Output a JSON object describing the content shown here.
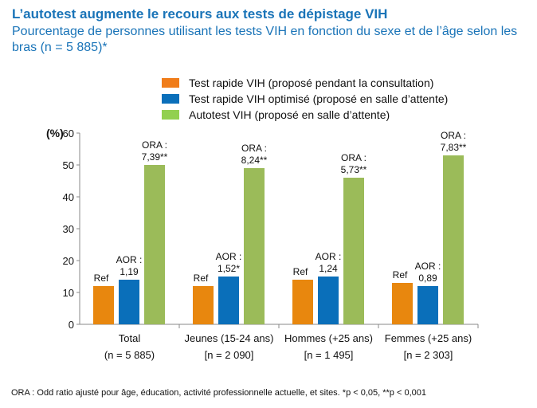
{
  "chart_data": {
    "type": "bar",
    "title": "L’autotest augmente le recours aux tests de dépistage VIH",
    "subtitle": "Pourcentage de personnes utilisant les tests VIH en fonction du sexe et de l’âge selon les bras (n = 5 885)*",
    "ylabel": "(%)",
    "ylim": [
      0,
      60
    ],
    "yticks": [
      "0",
      "10",
      "20",
      "30",
      "40",
      "50",
      "60"
    ],
    "categories": [
      {
        "line1": "Total",
        "line2": "(n = 5 885)"
      },
      {
        "line1": "Jeunes (15-24 ans)",
        "line2": "[n = 2 090]"
      },
      {
        "line1": "Hommes (+25 ans)",
        "line2": "[n = 1 495]"
      },
      {
        "line1": "Femmes (+25 ans)",
        "line2": "[n = 2 303]"
      }
    ],
    "series": [
      {
        "name": "Test rapide VIH (proposé pendant la consultation)",
        "color": "#e8870e",
        "values": [
          12,
          12,
          14,
          13
        ],
        "labels": [
          [
            "Ref"
          ],
          [
            "Ref"
          ],
          [
            "Ref"
          ],
          [
            "Ref"
          ]
        ]
      },
      {
        "name": "Test  rapide VIH optimisé (proposé en salle d’attente)",
        "color": "#0a6fba",
        "values": [
          14,
          15,
          15,
          12
        ],
        "labels": [
          [
            "AOR :",
            "1,19"
          ],
          [
            "AOR :",
            "1,52*"
          ],
          [
            "AOR :",
            "1,24"
          ],
          [
            "AOR :",
            "0,89"
          ]
        ]
      },
      {
        "name": "Autotest VIH (proposé en salle d’attente)",
        "color": "#9bbb59",
        "values": [
          50,
          49,
          46,
          53
        ],
        "labels": [
          [
            "ORA :",
            "7,39**"
          ],
          [
            "ORA :",
            "8,24**"
          ],
          [
            "ORA :",
            "5,73**"
          ],
          [
            "ORA :",
            "7,83**"
          ]
        ]
      }
    ],
    "legend_position": "top-right",
    "footnote": "ORA : Odd ratio ajusté pour  âge, éducation, activité professionnelle actuelle, et sites. *p < 0,05, **p < 0,001"
  }
}
